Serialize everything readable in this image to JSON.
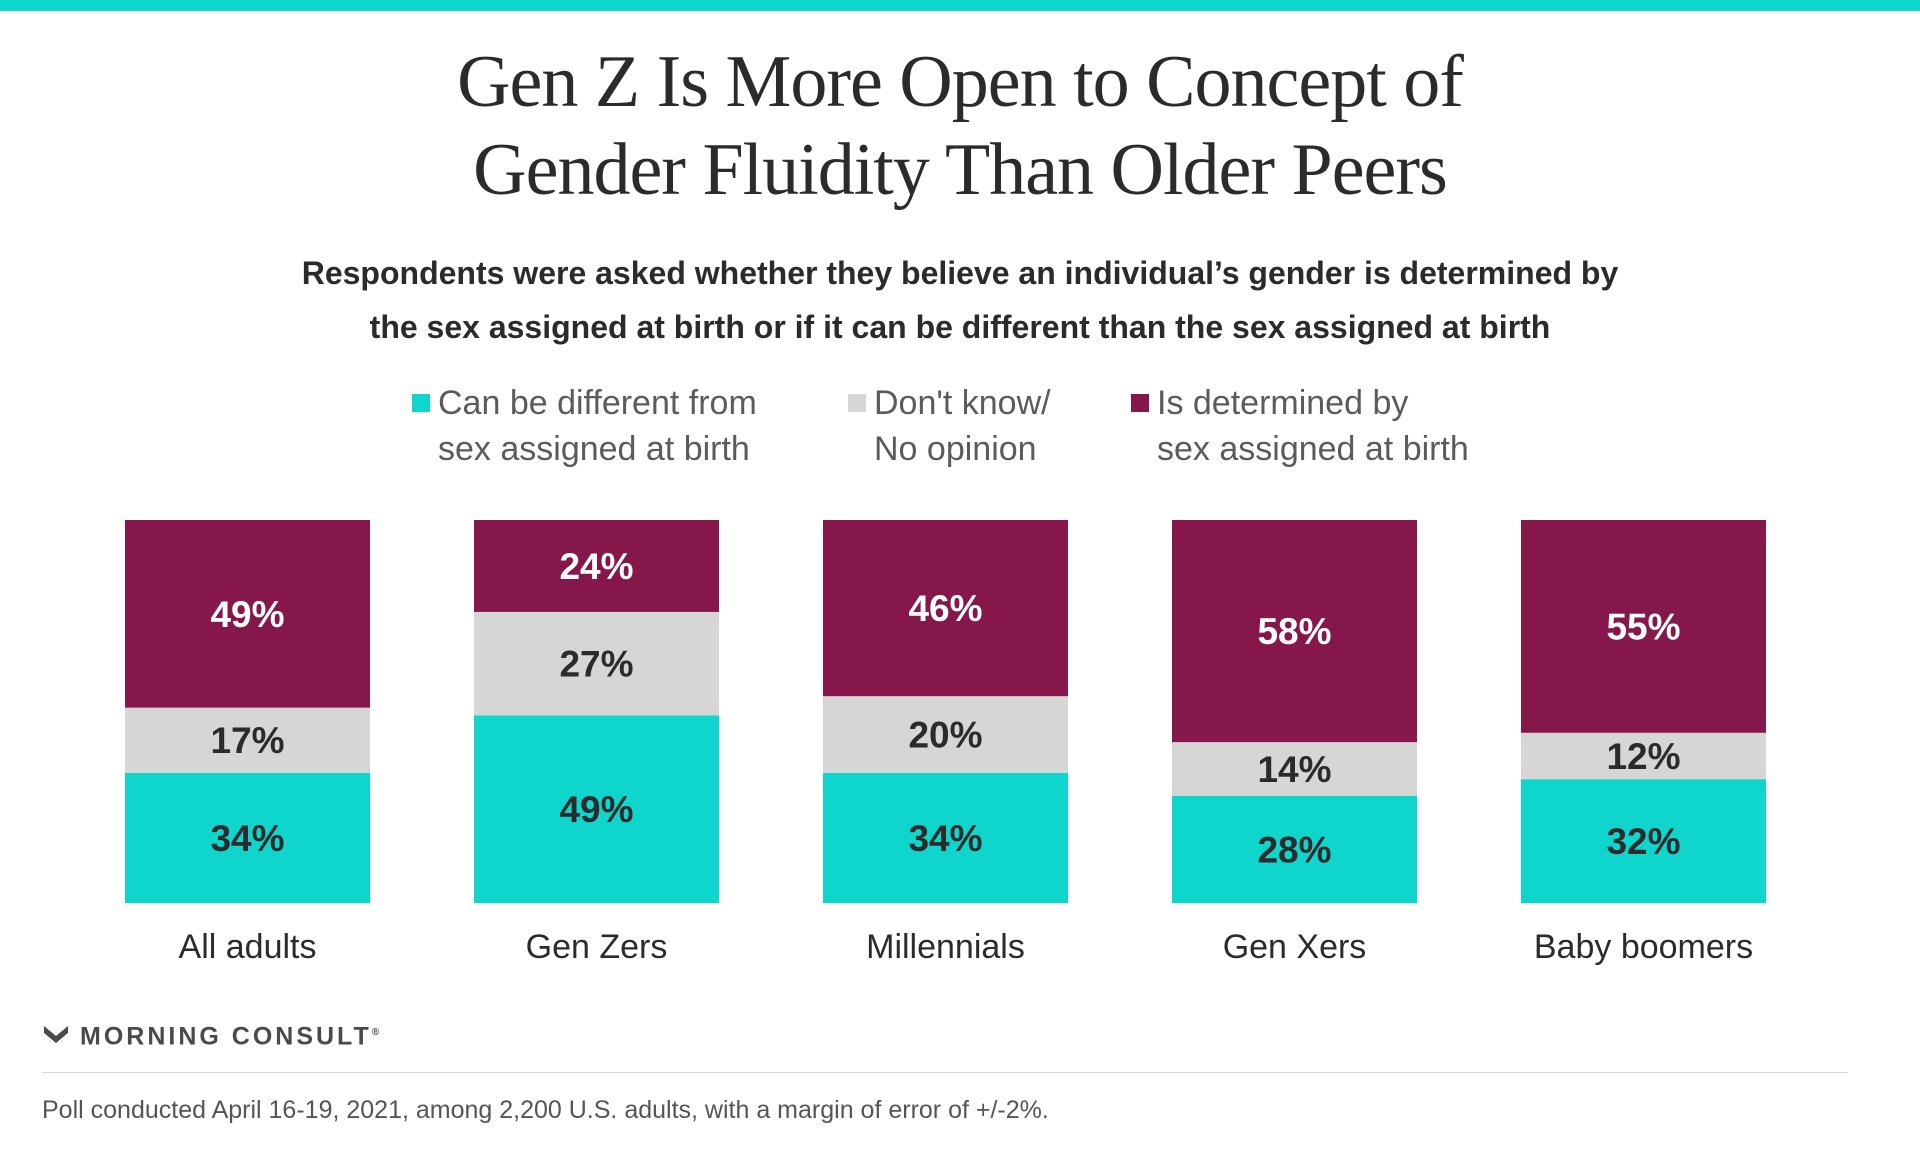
{
  "header": {
    "title_lines": [
      "Gen Z Is More Open to Concept of",
      "Gender Fluidity Than Older Peers"
    ],
    "subtitle_lines": [
      "Respondents were asked whether they believe an individual’s gender is determined by",
      "the sex assigned at birth or if it can be different than the sex assigned at birth"
    ]
  },
  "legend": [
    {
      "lines": [
        "Can be different from",
        "sex assigned at birth"
      ],
      "color": "#0fd6cc"
    },
    {
      "lines": [
        "Don't know/",
        "No opinion"
      ],
      "color": "#d6d6d6"
    },
    {
      "lines": [
        "Is determined by",
        "sex assigned at birth"
      ],
      "color": "#85174b"
    }
  ],
  "chart_data": {
    "type": "bar",
    "stacked": true,
    "categories": [
      "All adults",
      "Gen Zers",
      "Millennials",
      "Gen Xers",
      "Baby boomers"
    ],
    "series": [
      {
        "name": "Can be different from sex assigned at birth",
        "values": [
          34,
          49,
          34,
          28,
          32
        ],
        "color": "#0fd6cc",
        "label_color": "#2b2b2b"
      },
      {
        "name": "Don't know/ No opinion",
        "values": [
          17,
          27,
          20,
          14,
          12
        ],
        "color": "#d6d6d6",
        "label_color": "#2b2b2b"
      },
      {
        "name": "Is determined by sex assigned at birth",
        "values": [
          49,
          24,
          46,
          58,
          55
        ],
        "color": "#85174b",
        "label_color": "#ffffff"
      }
    ],
    "value_suffix": "%",
    "ylim": [
      0,
      100
    ],
    "grid": false,
    "legend_position": "top"
  },
  "brand": {
    "name": "MORNING CONSULT",
    "mark": "®"
  },
  "footnote": "Poll conducted April 16-19, 2021, among 2,200 U.S. adults, with a margin of error of +/-2%."
}
